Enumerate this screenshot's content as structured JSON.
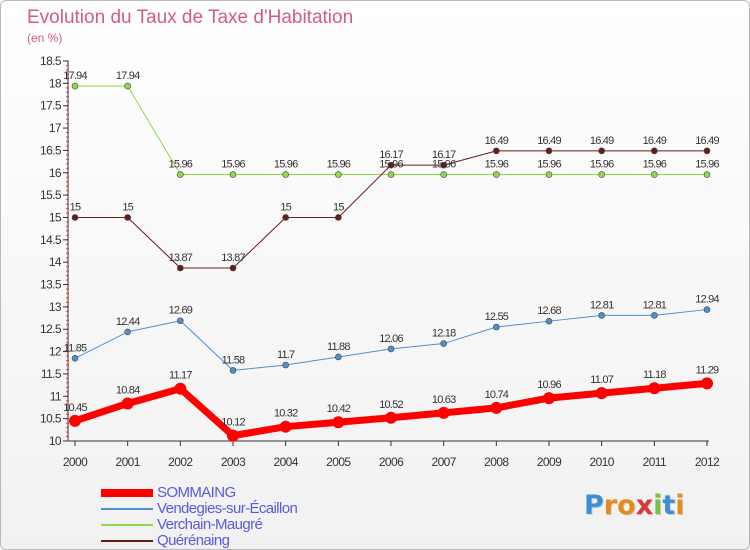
{
  "header": {
    "title": "Evolution du Taux de Taxe d'Habitation",
    "subtitle": "(en %)"
  },
  "chart_data": {
    "type": "line",
    "x": [
      "2000",
      "2001",
      "2002",
      "2003",
      "2004",
      "2005",
      "2006",
      "2007",
      "2008",
      "2009",
      "2010",
      "2011",
      "2012"
    ],
    "ylim": [
      10,
      18.5
    ],
    "yticks": [
      "10",
      "10.5",
      "11",
      "11.5",
      "12",
      "12.5",
      "13",
      "13.5",
      "14",
      "14.5",
      "15",
      "15.5",
      "16",
      "16.5",
      "17",
      "17.5",
      "18",
      "18.5"
    ],
    "grid": false,
    "legend_position": "bottom-left",
    "series": [
      {
        "name": "SOMMAING",
        "color": "#ff0000",
        "values": [
          10.45,
          10.84,
          11.17,
          10.12,
          10.32,
          10.42,
          10.52,
          10.63,
          10.74,
          10.96,
          11.07,
          11.18,
          11.29
        ],
        "labels": [
          "10.45",
          "10.84",
          "11.17",
          "10.12",
          "10.32",
          "10.42",
          "10.52",
          "10.63",
          "10.74",
          "10.96",
          "11.07",
          "11.18",
          "11.29"
        ]
      },
      {
        "name": "Vendegies-sur-Écaillon",
        "color": "#4f8fcf",
        "values": [
          11.85,
          12.44,
          12.69,
          11.58,
          11.7,
          11.88,
          12.06,
          12.18,
          12.55,
          12.68,
          12.81,
          12.81,
          12.94
        ],
        "labels": [
          "11.85",
          "12.44",
          "12.69",
          "11.58",
          "11.7",
          "11.88",
          "12.06",
          "12.18",
          "12.55",
          "12.68",
          "12.81",
          "12.81",
          "12.94"
        ]
      },
      {
        "name": "Verchain-Maugré",
        "color": "#8ed94a",
        "values": [
          17.94,
          17.94,
          15.96,
          15.96,
          15.96,
          15.96,
          15.96,
          15.96,
          15.96,
          15.96,
          15.96,
          15.96,
          15.96
        ],
        "labels": [
          "17.94",
          "17.94",
          "15.96",
          "15.96",
          "15.96",
          "15.96",
          "15.96",
          "15.96",
          "15.96",
          "15.96",
          "15.96",
          "15.96",
          "15.96"
        ]
      },
      {
        "name": "Quérénaing",
        "color": "#6b1a1a",
        "values": [
          15,
          15,
          13.87,
          13.87,
          15,
          15,
          16.17,
          16.17,
          16.49,
          16.49,
          16.49,
          16.49,
          16.49
        ],
        "labels": [
          "15",
          "15",
          "13.87",
          "13.87",
          "15",
          "15",
          "16.17",
          "16.17",
          "16.49",
          "16.49",
          "16.49",
          "16.49",
          "16.49"
        ]
      }
    ]
  },
  "logo": {
    "letters": [
      "P",
      "r",
      "o",
      "x",
      "i",
      "t",
      "i"
    ],
    "colors": [
      "#3a8fd6",
      "#e58a1f",
      "#e58a1f",
      "#d63a3a",
      "#7cc242",
      "#3a8fd6",
      "#e58a1f"
    ]
  }
}
